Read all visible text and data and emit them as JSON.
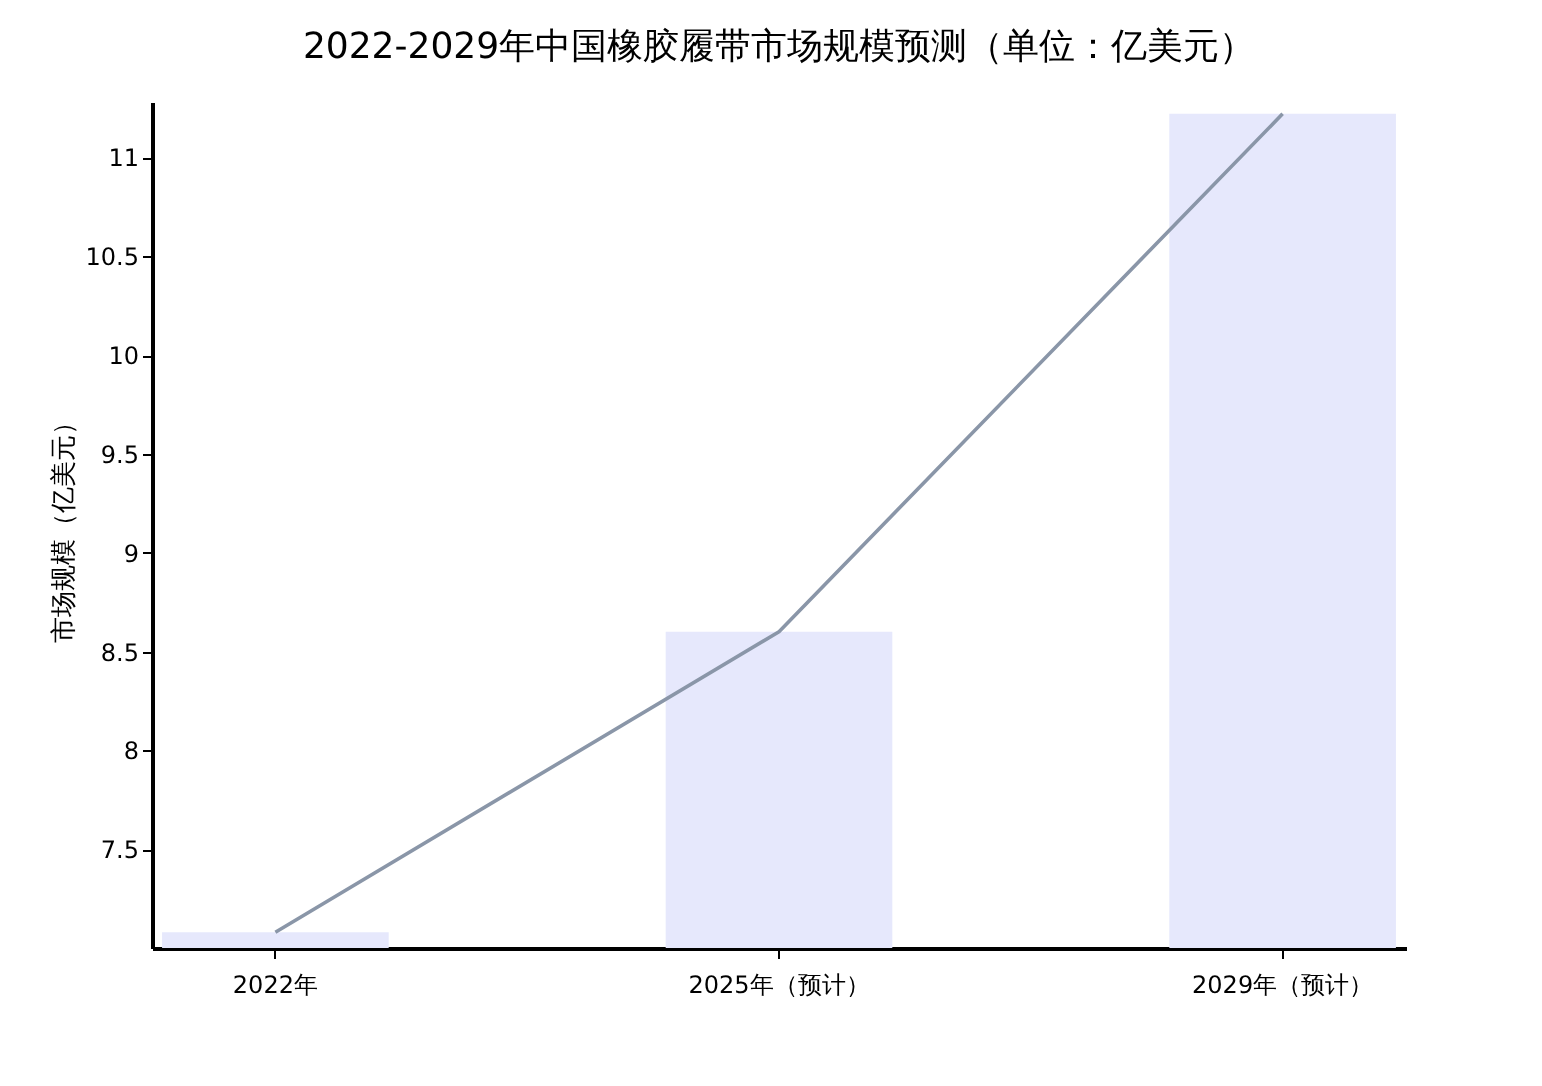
{
  "chart_data": {
    "type": "bar",
    "title": "2022-2029年中国橡胶履带市场规模预测（单位：亿美元）",
    "ylabel": "市场规模（亿美元）",
    "categories": [
      "2022年",
      "2025年（预计）",
      "2029年（预计）"
    ],
    "series": [
      {
        "color": "#e6e8fc",
        "values": [
          7.08,
          8.6,
          11.22
        ]
      },
      {
        "type": "line",
        "color": "#8a96a8",
        "values": [
          7.08,
          8.6,
          11.22
        ]
      }
    ],
    "ylim": [
      7.0,
      11.28
    ],
    "yticks": [
      7.5,
      8,
      8.5,
      9,
      9.5,
      10,
      10.5,
      11
    ],
    "grid": false,
    "legend": false
  }
}
